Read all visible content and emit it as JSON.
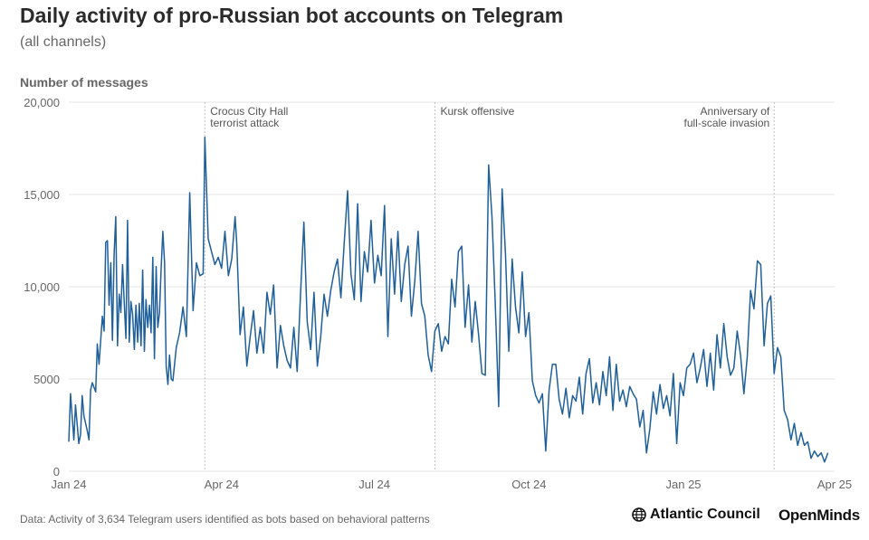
{
  "chart_data": {
    "type": "line",
    "title": "Daily activity of pro-Russian bot accounts on Telegram",
    "subtitle": "(all channels)",
    "ylabel": "Number of messages",
    "xlabel": "",
    "ylim": [
      0,
      20000
    ],
    "xlim": [
      "2024-01-01",
      "2025-04-01"
    ],
    "grid": true,
    "y_ticks": [
      {
        "value": 0,
        "label": "0"
      },
      {
        "value": 5000,
        "label": "5000"
      },
      {
        "value": 10000,
        "label": "10,000"
      },
      {
        "value": 15000,
        "label": "15,000"
      },
      {
        "value": 20000,
        "label": "20,000"
      }
    ],
    "x_ticks": [
      {
        "date": "2024-01-01",
        "label": "Jan 24"
      },
      {
        "date": "2024-04-01",
        "label": "Apr 24"
      },
      {
        "date": "2024-07-01",
        "label": "Jul 24"
      },
      {
        "date": "2024-10-01",
        "label": "Oct 24"
      },
      {
        "date": "2025-01-01",
        "label": "Jan 25"
      },
      {
        "date": "2025-04-01",
        "label": "Apr 25"
      }
    ],
    "annotations": [
      {
        "date": "2024-03-22",
        "lines": [
          "Crocus City Hall",
          "terrorist attack"
        ],
        "align": "start"
      },
      {
        "date": "2024-08-06",
        "lines": [
          "Kursk offensive"
        ],
        "align": "start"
      },
      {
        "date": "2025-02-24",
        "lines": [
          "Anniversary of",
          "full-scale invasion"
        ],
        "align": "end"
      }
    ],
    "series": [
      {
        "color": "#1f5f9a",
        "points": [
          [
            "2024-01-01",
            1600
          ],
          [
            "2024-01-02",
            4200
          ],
          [
            "2024-01-04",
            1700
          ],
          [
            "2024-01-05",
            3600
          ],
          [
            "2024-01-07",
            1500
          ],
          [
            "2024-01-08",
            2000
          ],
          [
            "2024-01-09",
            4100
          ],
          [
            "2024-01-10",
            3000
          ],
          [
            "2024-01-12",
            2200
          ],
          [
            "2024-01-13",
            1700
          ],
          [
            "2024-01-14",
            4400
          ],
          [
            "2024-01-15",
            4800
          ],
          [
            "2024-01-17",
            4300
          ],
          [
            "2024-01-18",
            6900
          ],
          [
            "2024-01-19",
            5800
          ],
          [
            "2024-01-21",
            8400
          ],
          [
            "2024-01-22",
            7600
          ],
          [
            "2024-01-23",
            12400
          ],
          [
            "2024-01-24",
            12500
          ],
          [
            "2024-01-25",
            9000
          ],
          [
            "2024-01-26",
            11300
          ],
          [
            "2024-01-27",
            7100
          ],
          [
            "2024-01-28",
            11800
          ],
          [
            "2024-01-29",
            13800
          ],
          [
            "2024-01-30",
            6800
          ],
          [
            "2024-01-31",
            9600
          ],
          [
            "2024-02-01",
            8600
          ],
          [
            "2024-02-02",
            11200
          ],
          [
            "2024-02-03",
            9200
          ],
          [
            "2024-02-04",
            7200
          ],
          [
            "2024-02-05",
            13600
          ],
          [
            "2024-02-06",
            7000
          ],
          [
            "2024-02-07",
            9200
          ],
          [
            "2024-02-08",
            8500
          ],
          [
            "2024-02-09",
            6600
          ],
          [
            "2024-02-10",
            9000
          ],
          [
            "2024-02-11",
            7000
          ],
          [
            "2024-02-12",
            9100
          ],
          [
            "2024-02-13",
            6800
          ],
          [
            "2024-02-14",
            10900
          ],
          [
            "2024-02-15",
            6500
          ],
          [
            "2024-02-16",
            9300
          ],
          [
            "2024-02-17",
            7800
          ],
          [
            "2024-02-18",
            9000
          ],
          [
            "2024-02-19",
            7500
          ],
          [
            "2024-02-20",
            11600
          ],
          [
            "2024-02-21",
            6100
          ],
          [
            "2024-02-22",
            11100
          ],
          [
            "2024-02-23",
            7800
          ],
          [
            "2024-02-24",
            8600
          ],
          [
            "2024-02-25",
            11000
          ],
          [
            "2024-02-26",
            13000
          ],
          [
            "2024-02-27",
            11300
          ],
          [
            "2024-02-28",
            5700
          ],
          [
            "2024-02-29",
            4700
          ],
          [
            "2024-03-01",
            6300
          ],
          [
            "2024-03-02",
            5000
          ],
          [
            "2024-03-03",
            4900
          ],
          [
            "2024-03-05",
            6700
          ],
          [
            "2024-03-07",
            7500
          ],
          [
            "2024-03-09",
            8900
          ],
          [
            "2024-03-11",
            7300
          ],
          [
            "2024-03-13",
            15100
          ],
          [
            "2024-03-15",
            8700
          ],
          [
            "2024-03-17",
            11300
          ],
          [
            "2024-03-19",
            10600
          ],
          [
            "2024-03-21",
            10700
          ],
          [
            "2024-03-22",
            18100
          ],
          [
            "2024-03-24",
            12600
          ],
          [
            "2024-03-26",
            11900
          ],
          [
            "2024-03-28",
            11200
          ],
          [
            "2024-03-30",
            11600
          ],
          [
            "2024-04-01",
            11000
          ],
          [
            "2024-04-03",
            13000
          ],
          [
            "2024-04-05",
            10600
          ],
          [
            "2024-04-07",
            11500
          ],
          [
            "2024-04-09",
            13800
          ],
          [
            "2024-04-10",
            12400
          ],
          [
            "2024-04-12",
            7400
          ],
          [
            "2024-04-14",
            8900
          ],
          [
            "2024-04-16",
            5700
          ],
          [
            "2024-04-18",
            7300
          ],
          [
            "2024-04-20",
            8700
          ],
          [
            "2024-04-22",
            6400
          ],
          [
            "2024-04-24",
            7800
          ],
          [
            "2024-04-26",
            6400
          ],
          [
            "2024-04-28",
            9700
          ],
          [
            "2024-04-30",
            8500
          ],
          [
            "2024-05-02",
            10100
          ],
          [
            "2024-05-04",
            5600
          ],
          [
            "2024-05-06",
            7900
          ],
          [
            "2024-05-08",
            6800
          ],
          [
            "2024-05-10",
            6000
          ],
          [
            "2024-05-12",
            5600
          ],
          [
            "2024-05-14",
            7800
          ],
          [
            "2024-05-16",
            5400
          ],
          [
            "2024-05-18",
            9600
          ],
          [
            "2024-05-20",
            13500
          ],
          [
            "2024-05-22",
            8100
          ],
          [
            "2024-05-24",
            6600
          ],
          [
            "2024-05-26",
            9700
          ],
          [
            "2024-05-28",
            5700
          ],
          [
            "2024-05-30",
            7300
          ],
          [
            "2024-06-01",
            9600
          ],
          [
            "2024-06-03",
            8400
          ],
          [
            "2024-06-05",
            9800
          ],
          [
            "2024-06-07",
            10800
          ],
          [
            "2024-06-09",
            11500
          ],
          [
            "2024-06-11",
            9400
          ],
          [
            "2024-06-13",
            12400
          ],
          [
            "2024-06-15",
            15200
          ],
          [
            "2024-06-17",
            10700
          ],
          [
            "2024-06-19",
            9300
          ],
          [
            "2024-06-21",
            14500
          ],
          [
            "2024-06-23",
            9200
          ],
          [
            "2024-06-25",
            11900
          ],
          [
            "2024-06-27",
            10800
          ],
          [
            "2024-06-29",
            13600
          ],
          [
            "2024-07-01",
            10200
          ],
          [
            "2024-07-03",
            11700
          ],
          [
            "2024-07-05",
            10600
          ],
          [
            "2024-07-07",
            14400
          ],
          [
            "2024-07-09",
            7300
          ],
          [
            "2024-07-11",
            12600
          ],
          [
            "2024-07-13",
            9600
          ],
          [
            "2024-07-15",
            13000
          ],
          [
            "2024-07-17",
            9200
          ],
          [
            "2024-07-19",
            11200
          ],
          [
            "2024-07-21",
            12200
          ],
          [
            "2024-07-23",
            8400
          ],
          [
            "2024-07-25",
            10300
          ],
          [
            "2024-07-27",
            13000
          ],
          [
            "2024-07-29",
            9100
          ],
          [
            "2024-07-31",
            8400
          ],
          [
            "2024-08-02",
            6300
          ],
          [
            "2024-08-04",
            5400
          ],
          [
            "2024-08-06",
            7600
          ],
          [
            "2024-08-08",
            8000
          ],
          [
            "2024-08-10",
            6500
          ],
          [
            "2024-08-12",
            7300
          ],
          [
            "2024-08-14",
            6900
          ],
          [
            "2024-08-16",
            10400
          ],
          [
            "2024-08-18",
            8900
          ],
          [
            "2024-08-20",
            11900
          ],
          [
            "2024-08-22",
            12200
          ],
          [
            "2024-08-24",
            7800
          ],
          [
            "2024-08-26",
            10100
          ],
          [
            "2024-08-28",
            7000
          ],
          [
            "2024-08-30",
            9200
          ],
          [
            "2024-09-01",
            7400
          ],
          [
            "2024-09-03",
            5300
          ],
          [
            "2024-09-05",
            5200
          ],
          [
            "2024-09-07",
            16600
          ],
          [
            "2024-09-09",
            13800
          ],
          [
            "2024-09-11",
            9000
          ],
          [
            "2024-09-13",
            3500
          ],
          [
            "2024-09-15",
            15300
          ],
          [
            "2024-09-17",
            11800
          ],
          [
            "2024-09-19",
            6500
          ],
          [
            "2024-09-21",
            11500
          ],
          [
            "2024-09-23",
            8900
          ],
          [
            "2024-09-25",
            7500
          ],
          [
            "2024-09-27",
            10800
          ],
          [
            "2024-09-29",
            7300
          ],
          [
            "2024-10-01",
            8600
          ],
          [
            "2024-10-03",
            4900
          ],
          [
            "2024-10-05",
            4100
          ],
          [
            "2024-10-07",
            3700
          ],
          [
            "2024-10-09",
            4200
          ],
          [
            "2024-10-11",
            1100
          ],
          [
            "2024-10-13",
            4400
          ],
          [
            "2024-10-15",
            5800
          ],
          [
            "2024-10-17",
            5800
          ],
          [
            "2024-10-19",
            3900
          ],
          [
            "2024-10-21",
            3100
          ],
          [
            "2024-10-23",
            4500
          ],
          [
            "2024-10-25",
            2900
          ],
          [
            "2024-10-27",
            4100
          ],
          [
            "2024-10-29",
            3800
          ],
          [
            "2024-10-31",
            5100
          ],
          [
            "2024-11-02",
            3100
          ],
          [
            "2024-11-04",
            5300
          ],
          [
            "2024-11-06",
            6100
          ],
          [
            "2024-11-08",
            3700
          ],
          [
            "2024-11-10",
            4800
          ],
          [
            "2024-11-12",
            3600
          ],
          [
            "2024-11-14",
            5400
          ],
          [
            "2024-11-16",
            4100
          ],
          [
            "2024-11-18",
            6200
          ],
          [
            "2024-11-20",
            3300
          ],
          [
            "2024-11-22",
            5800
          ],
          [
            "2024-11-24",
            3800
          ],
          [
            "2024-11-26",
            4400
          ],
          [
            "2024-11-28",
            3500
          ],
          [
            "2024-11-30",
            4600
          ],
          [
            "2024-12-02",
            4200
          ],
          [
            "2024-12-04",
            3900
          ],
          [
            "2024-12-06",
            2400
          ],
          [
            "2024-12-08",
            3300
          ],
          [
            "2024-12-10",
            1000
          ],
          [
            "2024-12-12",
            2300
          ],
          [
            "2024-12-14",
            4300
          ],
          [
            "2024-12-16",
            3100
          ],
          [
            "2024-12-18",
            4700
          ],
          [
            "2024-12-20",
            3400
          ],
          [
            "2024-12-22",
            4100
          ],
          [
            "2024-12-24",
            3000
          ],
          [
            "2024-12-26",
            5300
          ],
          [
            "2024-12-28",
            1500
          ],
          [
            "2024-12-30",
            4800
          ],
          [
            "2025-01-01",
            4100
          ],
          [
            "2025-01-03",
            5600
          ],
          [
            "2025-01-05",
            5800
          ],
          [
            "2025-01-07",
            6400
          ],
          [
            "2025-01-09",
            4800
          ],
          [
            "2025-01-11",
            5600
          ],
          [
            "2025-01-13",
            6600
          ],
          [
            "2025-01-15",
            4600
          ],
          [
            "2025-01-17",
            6400
          ],
          [
            "2025-01-19",
            4400
          ],
          [
            "2025-01-21",
            7400
          ],
          [
            "2025-01-23",
            5600
          ],
          [
            "2025-01-25",
            8000
          ],
          [
            "2025-01-27",
            6200
          ],
          [
            "2025-01-29",
            5200
          ],
          [
            "2025-01-31",
            5600
          ],
          [
            "2025-02-02",
            7600
          ],
          [
            "2025-02-04",
            6300
          ],
          [
            "2025-02-06",
            4200
          ],
          [
            "2025-02-08",
            6200
          ],
          [
            "2025-02-10",
            9800
          ],
          [
            "2025-02-12",
            8800
          ],
          [
            "2025-02-14",
            11400
          ],
          [
            "2025-02-16",
            11200
          ],
          [
            "2025-02-18",
            6800
          ],
          [
            "2025-02-20",
            9100
          ],
          [
            "2025-02-22",
            9500
          ],
          [
            "2025-02-24",
            5300
          ],
          [
            "2025-02-26",
            6700
          ],
          [
            "2025-02-28",
            6200
          ],
          [
            "2025-03-02",
            3300
          ],
          [
            "2025-03-04",
            2800
          ],
          [
            "2025-03-06",
            1700
          ],
          [
            "2025-03-08",
            2600
          ],
          [
            "2025-03-10",
            1400
          ],
          [
            "2025-03-12",
            2100
          ],
          [
            "2025-03-14",
            1400
          ],
          [
            "2025-03-16",
            1600
          ],
          [
            "2025-03-18",
            700
          ],
          [
            "2025-03-20",
            1100
          ],
          [
            "2025-03-22",
            800
          ],
          [
            "2025-03-24",
            1000
          ],
          [
            "2025-03-26",
            500
          ],
          [
            "2025-03-28",
            1000
          ]
        ]
      }
    ]
  },
  "footer": {
    "source": "Data: Activity of 3,634 Telegram users identified as bots based on behavioral patterns",
    "logo_atlantic": "Atlantic Council",
    "logo_openminds": "OpenMinds"
  }
}
